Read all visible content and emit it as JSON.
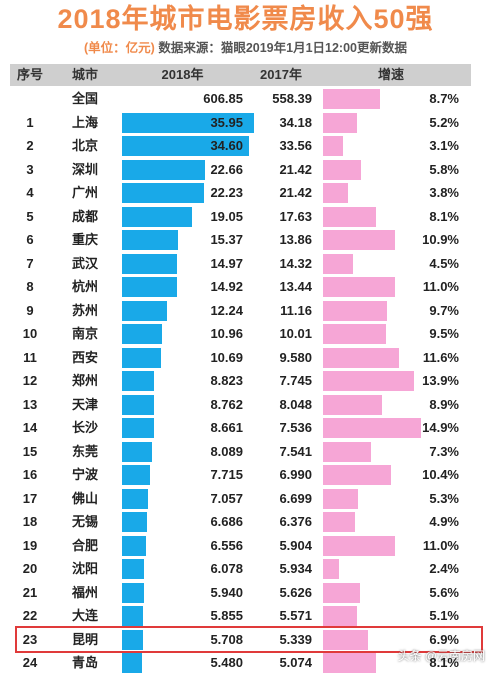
{
  "title": "2018年城市电影票房收入50强",
  "subtitle_unit": "(单位：亿元)",
  "subtitle_source": "数据来源：猫眼2019年1月1日12:00更新数据",
  "watermark": "头条 @云南房网",
  "colors": {
    "bar_2018": "#19a9e8",
    "bar_growth": "#f6a6d6",
    "title": "#f08a4b",
    "highlight": "#e03a3a"
  },
  "chart_data": {
    "type": "table",
    "columns": [
      "序号",
      "城市",
      "2018年",
      "2017年",
      "增速"
    ],
    "rows": [
      {
        "rank": "",
        "city": "全国",
        "v2018": "606.85",
        "v2017": "558.39",
        "growth": "8.7%"
      },
      {
        "rank": "1",
        "city": "上海",
        "v2018": "35.95",
        "v2017": "34.18",
        "growth": "5.2%"
      },
      {
        "rank": "2",
        "city": "北京",
        "v2018": "34.60",
        "v2017": "33.56",
        "growth": "3.1%"
      },
      {
        "rank": "3",
        "city": "深圳",
        "v2018": "22.66",
        "v2017": "21.42",
        "growth": "5.8%"
      },
      {
        "rank": "4",
        "city": "广州",
        "v2018": "22.23",
        "v2017": "21.42",
        "growth": "3.8%"
      },
      {
        "rank": "5",
        "city": "成都",
        "v2018": "19.05",
        "v2017": "17.63",
        "growth": "8.1%"
      },
      {
        "rank": "6",
        "city": "重庆",
        "v2018": "15.37",
        "v2017": "13.86",
        "growth": "10.9%"
      },
      {
        "rank": "7",
        "city": "武汉",
        "v2018": "14.97",
        "v2017": "14.32",
        "growth": "4.5%"
      },
      {
        "rank": "8",
        "city": "杭州",
        "v2018": "14.92",
        "v2017": "13.44",
        "growth": "11.0%"
      },
      {
        "rank": "9",
        "city": "苏州",
        "v2018": "12.24",
        "v2017": "11.16",
        "growth": "9.7%"
      },
      {
        "rank": "10",
        "city": "南京",
        "v2018": "10.96",
        "v2017": "10.01",
        "growth": "9.5%"
      },
      {
        "rank": "11",
        "city": "西安",
        "v2018": "10.69",
        "v2017": "9.580",
        "growth": "11.6%"
      },
      {
        "rank": "12",
        "city": "郑州",
        "v2018": "8.823",
        "v2017": "7.745",
        "growth": "13.9%"
      },
      {
        "rank": "13",
        "city": "天津",
        "v2018": "8.762",
        "v2017": "8.048",
        "growth": "8.9%"
      },
      {
        "rank": "14",
        "city": "长沙",
        "v2018": "8.661",
        "v2017": "7.536",
        "growth": "14.9%"
      },
      {
        "rank": "15",
        "city": "东莞",
        "v2018": "8.089",
        "v2017": "7.541",
        "growth": "7.3%"
      },
      {
        "rank": "16",
        "city": "宁波",
        "v2018": "7.715",
        "v2017": "6.990",
        "growth": "10.4%"
      },
      {
        "rank": "17",
        "city": "佛山",
        "v2018": "7.057",
        "v2017": "6.699",
        "growth": "5.3%"
      },
      {
        "rank": "18",
        "city": "无锡",
        "v2018": "6.686",
        "v2017": "6.376",
        "growth": "4.9%"
      },
      {
        "rank": "19",
        "city": "合肥",
        "v2018": "6.556",
        "v2017": "5.904",
        "growth": "11.0%"
      },
      {
        "rank": "20",
        "city": "沈阳",
        "v2018": "6.078",
        "v2017": "5.934",
        "growth": "2.4%"
      },
      {
        "rank": "21",
        "city": "福州",
        "v2018": "5.940",
        "v2017": "5.626",
        "growth": "5.6%"
      },
      {
        "rank": "22",
        "city": "大连",
        "v2018": "5.855",
        "v2017": "5.571",
        "growth": "5.1%"
      },
      {
        "rank": "23",
        "city": "昆明",
        "v2018": "5.708",
        "v2017": "5.339",
        "growth": "6.9%",
        "highlighted": true
      },
      {
        "rank": "24",
        "city": "青岛",
        "v2018": "5.480",
        "v2017": "5.074",
        "growth": "8.1%"
      }
    ]
  }
}
